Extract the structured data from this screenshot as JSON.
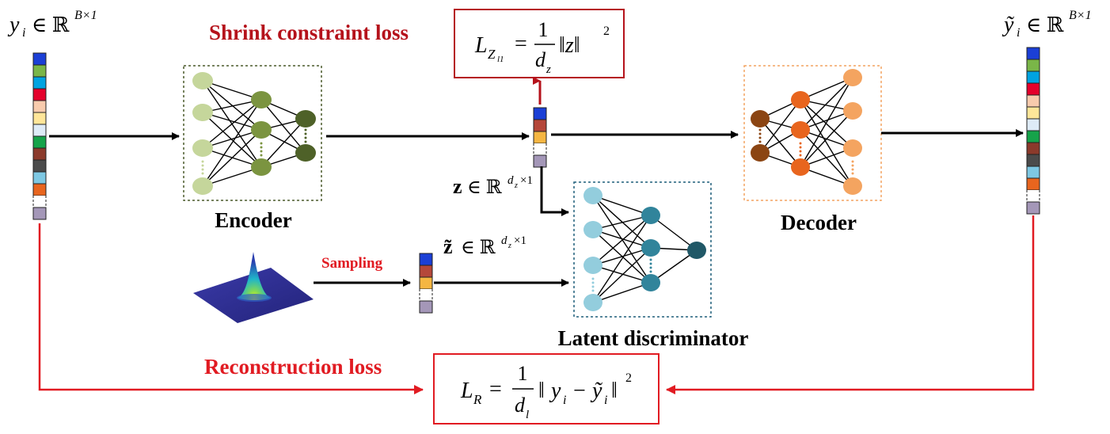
{
  "blocks": {
    "encoder": {
      "label": "Encoder",
      "border": "#4a5a2a",
      "colors": [
        "#c5d69b",
        "#7b9440",
        "#4e6128"
      ]
    },
    "decoder": {
      "label": "Decoder",
      "border": "#f4a460",
      "colors": [
        "#8b4513",
        "#e8651e",
        "#f4a460"
      ]
    },
    "discriminator": {
      "label": "Latent discriminator",
      "border": "#1f5f7a",
      "colors": [
        "#93cddd",
        "#31849b",
        "#205867"
      ]
    }
  },
  "labels": {
    "shrink_loss": "Shrink constraint loss",
    "reconstruction_loss": "Reconstruction loss",
    "sampling": "Sampling"
  },
  "math": {
    "input": {
      "var": "y",
      "sub": "i",
      "sym": "∈ ℝ",
      "sup": "B×1"
    },
    "output": {
      "var": "ỹ",
      "sub": "i",
      "sym": "∈ ℝ",
      "sup": "B×1"
    },
    "z": {
      "var": "z",
      "sym": "∈ ℝ",
      "sup_main": "d",
      "sup_sub": "z",
      "sup_rest": "×1"
    },
    "z_tilde": {
      "var": "z̃",
      "sym": "∈ ℝ",
      "sup_main": "d",
      "sup_sub": "z",
      "sup_rest": "×1"
    },
    "shrink_formula": {
      "L": "L",
      "L_sub": "Z",
      "L_subsub": "l1",
      "eq": "=",
      "num": "1",
      "den": "d",
      "den_sub": "z",
      "norm": "‖z‖",
      "pow": "2"
    },
    "recon_formula": {
      "L": "L",
      "L_sub": "R",
      "eq": "=",
      "num": "1",
      "den": "d",
      "den_sub": "l",
      "norm_open": "‖",
      "y": "y",
      "y_sub": "i",
      "minus": "−",
      "yt": "ỹ",
      "yt_sub": "i",
      "norm_close": "‖",
      "pow": "2"
    }
  },
  "colors": {
    "red": "#e11b22",
    "dark_red": "#b5121b",
    "input_vector": [
      "#1b3fd6",
      "#7ab648",
      "#00a3e0",
      "#e4002b",
      "#f8cbad",
      "#ffe699",
      "#deebf7",
      "#16a34a",
      "#8b3a2b",
      "#4b4b4b",
      "#7ec8e3",
      "#e8651e",
      "#ffffff",
      "#a497b8"
    ],
    "output_vector": [
      "#1b3fd6",
      "#7ab648",
      "#00a3e0",
      "#e4002b",
      "#f8cbad",
      "#ffe699",
      "#deebf7",
      "#16a34a",
      "#8b3a2b",
      "#4b4b4b",
      "#7ec8e3",
      "#e8651e",
      "#ffffff",
      "#a497b8"
    ],
    "latent_vector": [
      "#1b3fd6",
      "#b5473a",
      "#f5b642",
      "#ffffff",
      "#a497b8"
    ]
  },
  "icons": {
    "distribution": "gaussian-3d-surface-icon"
  }
}
